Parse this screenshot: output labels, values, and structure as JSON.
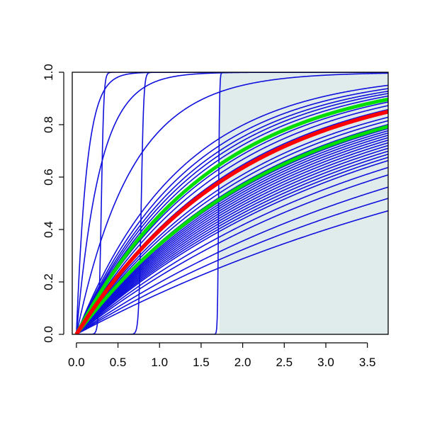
{
  "chart_data": {
    "type": "line",
    "title": "",
    "xlabel": "",
    "ylabel": "",
    "xlim": [
      -0.05,
      3.75
    ],
    "ylim": [
      0.0,
      1.0
    ],
    "x_ticks": [
      "0.0",
      "0.5",
      "1.0",
      "1.5",
      "2.0",
      "2.5",
      "3.0",
      "3.5"
    ],
    "y_ticks": [
      "0.0",
      "0.2",
      "0.4",
      "0.6",
      "0.8",
      "1.0"
    ],
    "grid": false,
    "legend": "none",
    "shaded_region": {
      "x_from": 1.72,
      "x_to": 3.75,
      "y_from": 0.0,
      "y_to": 1.0,
      "color": "#e0ecec"
    },
    "colors": {
      "curves": "#1010dd",
      "median": "#ff0000",
      "band": "#00dd00"
    },
    "series": [
      {
        "kind": "exp",
        "rate": 0.17,
        "role": "sample"
      },
      {
        "kind": "exp",
        "rate": 0.195,
        "role": "sample"
      },
      {
        "kind": "exp",
        "rate": 0.22,
        "role": "sample"
      },
      {
        "kind": "exp",
        "rate": 0.25,
        "role": "sample"
      },
      {
        "kind": "exp",
        "rate": 0.27,
        "role": "sample"
      },
      {
        "kind": "exp",
        "rate": 0.29,
        "role": "sample"
      },
      {
        "kind": "exp",
        "rate": 0.3,
        "role": "sample"
      },
      {
        "kind": "exp",
        "rate": 0.31,
        "role": "sample"
      },
      {
        "kind": "exp",
        "rate": 0.32,
        "role": "sample"
      },
      {
        "kind": "exp",
        "rate": 0.33,
        "role": "sample"
      },
      {
        "kind": "exp",
        "rate": 0.34,
        "role": "sample"
      },
      {
        "kind": "exp",
        "rate": 0.35,
        "role": "sample"
      },
      {
        "kind": "exp",
        "rate": 0.36,
        "role": "sample"
      },
      {
        "kind": "exp",
        "rate": 0.37,
        "role": "sample"
      },
      {
        "kind": "exp",
        "rate": 0.38,
        "role": "sample"
      },
      {
        "kind": "exp",
        "rate": 0.39,
        "role": "sample"
      },
      {
        "kind": "exp",
        "rate": 0.4,
        "role": "sample"
      },
      {
        "kind": "exp",
        "rate": 0.41,
        "role": "sample"
      },
      {
        "kind": "exp",
        "rate": 0.43,
        "role": "sample"
      },
      {
        "kind": "exp",
        "rate": 0.45,
        "role": "sample"
      },
      {
        "kind": "exp",
        "rate": 0.47,
        "role": "sample"
      },
      {
        "kind": "exp",
        "rate": 0.5,
        "role": "sample"
      },
      {
        "kind": "exp",
        "rate": 0.52,
        "role": "sample"
      },
      {
        "kind": "exp",
        "rate": 0.55,
        "role": "sample"
      },
      {
        "kind": "exp",
        "rate": 0.58,
        "role": "sample"
      },
      {
        "kind": "exp",
        "rate": 0.61,
        "role": "sample"
      },
      {
        "kind": "exp",
        "rate": 0.64,
        "role": "sample"
      },
      {
        "kind": "exp",
        "rate": 0.67,
        "role": "sample"
      },
      {
        "kind": "exp",
        "rate": 0.7,
        "role": "sample"
      },
      {
        "kind": "exp",
        "rate": 0.74,
        "role": "sample"
      },
      {
        "kind": "exp",
        "rate": 0.8,
        "role": "sample"
      },
      {
        "kind": "exp",
        "rate": 1.5,
        "role": "sample"
      },
      {
        "kind": "exp",
        "rate": 3.5,
        "role": "sample"
      },
      {
        "kind": "exp",
        "rate": 8.0,
        "role": "sample"
      },
      {
        "kind": "step",
        "center": 0.3,
        "width": 0.015,
        "role": "sample"
      },
      {
        "kind": "step",
        "center": 0.78,
        "width": 0.015,
        "role": "sample"
      },
      {
        "kind": "step",
        "center": 1.71,
        "width": 0.006,
        "role": "sample"
      },
      {
        "kind": "exp",
        "rate": 0.42,
        "role": "band"
      },
      {
        "kind": "exp",
        "rate": 0.605,
        "role": "band"
      },
      {
        "kind": "exp",
        "rate": 0.505,
        "role": "median"
      }
    ]
  }
}
